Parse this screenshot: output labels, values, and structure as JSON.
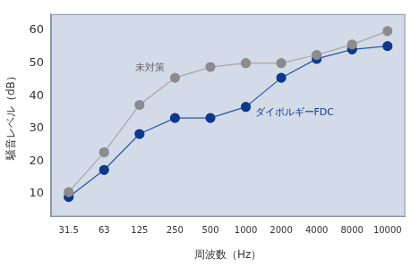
{
  "chart_data": {
    "type": "line",
    "x_label": "周波数（Hz）",
    "y_label": "騒音レベル（dB）",
    "categories": [
      "31.5",
      "63",
      "125",
      "250",
      "500",
      "1000",
      "2000",
      "4000",
      "8000",
      "10000"
    ],
    "series": [
      {
        "name": "未対策",
        "color": "#8c8c8c",
        "marker": "circle",
        "values": [
          10.5,
          22.7,
          37.2,
          45.5,
          48.8,
          50,
          50,
          52.5,
          55.7,
          59.8
        ]
      },
      {
        "name": "ダイポルギーFDC",
        "color": "#0b3a8c",
        "marker": "circle",
        "values": [
          9,
          17.3,
          28.3,
          33.2,
          33.2,
          36.6,
          45.5,
          51.3,
          54.2,
          55.2
        ]
      }
    ],
    "ylim": [
      3,
      65
    ],
    "yticks": [
      10,
      20,
      30,
      40,
      50,
      60
    ],
    "grid": false
  }
}
